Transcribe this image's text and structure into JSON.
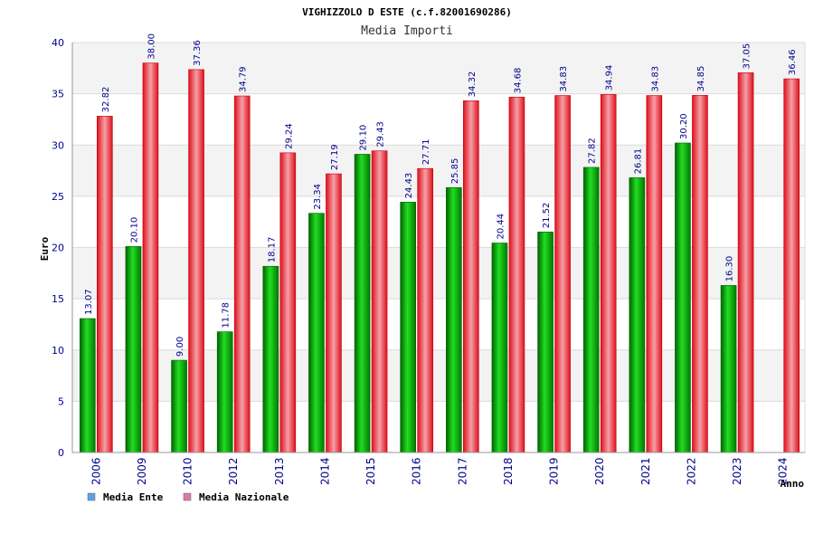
{
  "chart_data": {
    "type": "bar",
    "title": "VIGHIZZOLO D ESTE (c.f.82001690286)",
    "subtitle": "Media Importi",
    "xlabel": "Anno",
    "ylabel": "Euro",
    "ylim": [
      0,
      40
    ],
    "yticks": [
      0,
      5,
      10,
      15,
      20,
      25,
      30,
      35,
      40
    ],
    "grid": true,
    "legend_position": "bottom-left",
    "categories": [
      "2006",
      "2009",
      "2010",
      "2012",
      "2013",
      "2014",
      "2015",
      "2016",
      "2017",
      "2018",
      "2019",
      "2020",
      "2021",
      "2022",
      "2023",
      "2024"
    ],
    "series": [
      {
        "name": "Media Ente",
        "color": "#00c000",
        "legend_color": "#5aa0e6",
        "values": [
          13.07,
          20.1,
          9.0,
          11.78,
          18.17,
          23.34,
          29.1,
          24.43,
          25.85,
          20.44,
          21.52,
          27.82,
          26.81,
          30.2,
          16.3,
          null
        ],
        "labels": [
          "13.07",
          "20.10",
          "9.00",
          "11.78",
          "18.17",
          "23.34",
          "29.10",
          "24.43",
          "25.85",
          "20.44",
          "21.52",
          "27.82",
          "26.81",
          "30.20",
          "16.30",
          ""
        ]
      },
      {
        "name": "Media Nazionale",
        "color": "#e8202a",
        "legend_color": "#d97aa8",
        "values": [
          32.82,
          38.0,
          37.36,
          34.79,
          29.24,
          27.19,
          29.43,
          27.71,
          34.32,
          34.68,
          34.83,
          34.94,
          34.83,
          34.85,
          37.05,
          36.46
        ],
        "labels": [
          "32.82",
          "38.00",
          "37.36",
          "34.79",
          "29.24",
          "27.19",
          "29.43",
          "27.71",
          "34.32",
          "34.68",
          "34.83",
          "34.94",
          "34.83",
          "34.85",
          "37.05",
          "36.46"
        ]
      }
    ]
  }
}
